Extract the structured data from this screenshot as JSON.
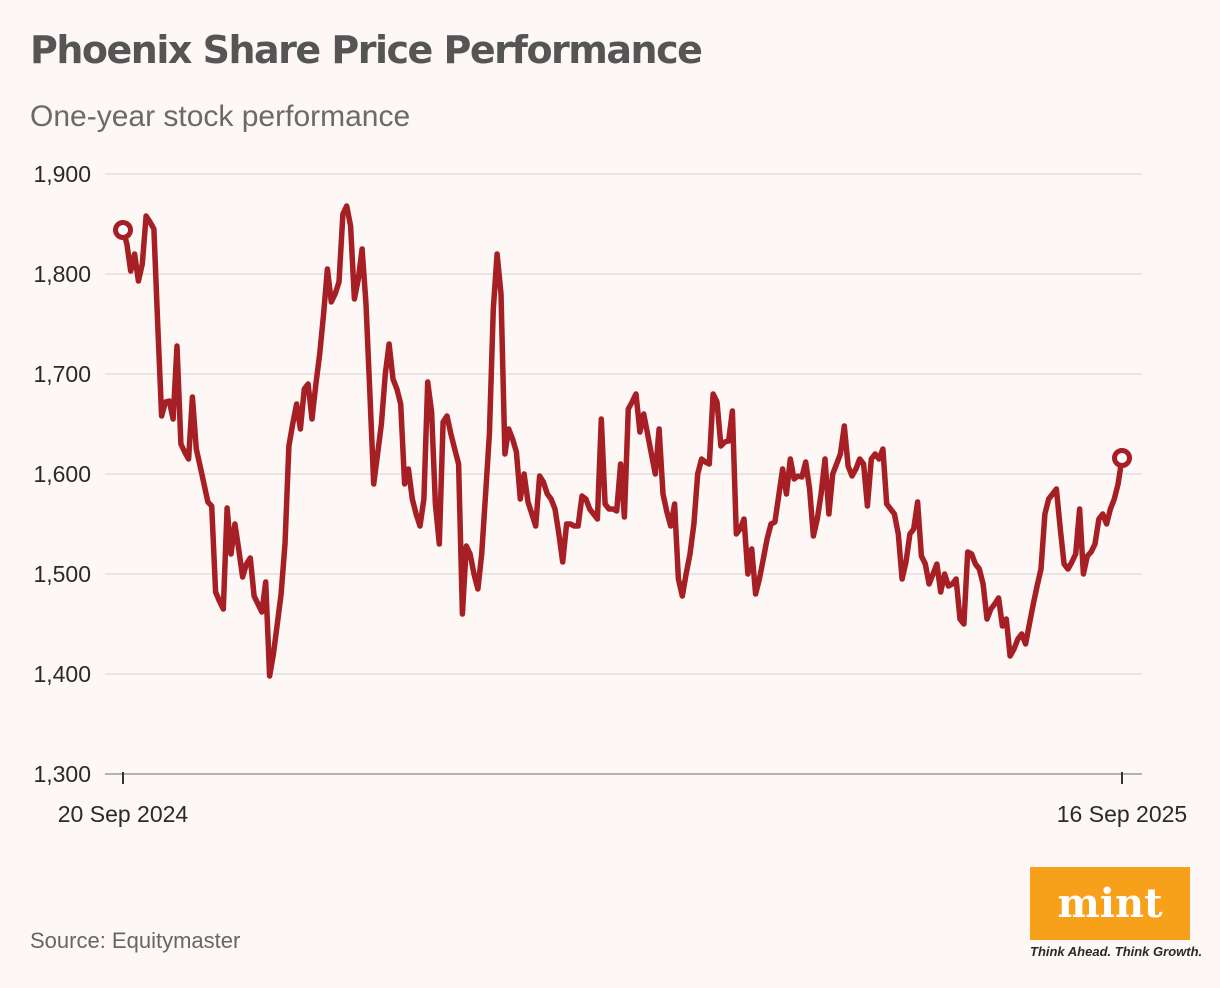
{
  "title": "Phoenix Share Price Performance",
  "subtitle": "One-year stock performance",
  "source": "Source: Equitymaster",
  "brand": {
    "name": "mint",
    "tagline": "Think Ahead. Think Growth."
  },
  "colors": {
    "line": "#a51f24",
    "grid": "#dcdcdc",
    "axis_text": "#2a2a2a",
    "logo_bg": "#f7a11a",
    "background": "#fdf8f5"
  },
  "chart_data": {
    "type": "line",
    "title": "Phoenix Share Price Performance",
    "subtitle": "One-year stock performance",
    "xlabel": "",
    "ylabel": "",
    "ylim": [
      1300,
      1900
    ],
    "yticks": [
      1300,
      1400,
      1500,
      1600,
      1700,
      1800,
      1900
    ],
    "ytick_labels": [
      "1,300",
      "1,400",
      "1,500",
      "1,600",
      "1,700",
      "1,800",
      "1,900"
    ],
    "x_start_label": "20 Sep 2024",
    "x_end_label": "16 Sep 2025",
    "grid": true,
    "legend": "none",
    "markers": [
      "first",
      "last"
    ],
    "series": [
      {
        "values": [
          1844,
          1830,
          1803,
          1820,
          1793,
          1810,
          1858,
          1852,
          1845,
          1750,
          1658,
          1672,
          1673,
          1655,
          1728,
          1630,
          1622,
          1615,
          1677,
          1625,
          1608,
          1590,
          1572,
          1568,
          1482,
          1473,
          1465,
          1566,
          1520,
          1550,
          1525,
          1497,
          1510,
          1516,
          1478,
          1470,
          1462,
          1492,
          1398,
          1420,
          1450,
          1480,
          1530,
          1628,
          1650,
          1670,
          1645,
          1685,
          1690,
          1655,
          1690,
          1720,
          1760,
          1805,
          1772,
          1780,
          1792,
          1860,
          1868,
          1848,
          1775,
          1795,
          1825,
          1770,
          1680,
          1590,
          1620,
          1650,
          1700,
          1730,
          1695,
          1685,
          1670,
          1590,
          1605,
          1575,
          1560,
          1548,
          1575,
          1692,
          1662,
          1570,
          1530,
          1652,
          1658,
          1640,
          1625,
          1610,
          1460,
          1528,
          1520,
          1500,
          1485,
          1520,
          1580,
          1640,
          1765,
          1820,
          1780,
          1620,
          1645,
          1635,
          1622,
          1575,
          1600,
          1572,
          1560,
          1548,
          1598,
          1592,
          1580,
          1575,
          1565,
          1540,
          1512,
          1550,
          1550,
          1548,
          1548,
          1578,
          1575,
          1565,
          1560,
          1555,
          1655,
          1570,
          1565,
          1565,
          1563,
          1610,
          1557,
          1665,
          1672,
          1680,
          1642,
          1660,
          1640,
          1620,
          1600,
          1645,
          1580,
          1562,
          1548,
          1570,
          1495,
          1478,
          1500,
          1520,
          1550,
          1600,
          1615,
          1612,
          1610,
          1680,
          1672,
          1628,
          1632,
          1633,
          1663,
          1540,
          1545,
          1555,
          1500,
          1525,
          1480,
          1495,
          1515,
          1535,
          1550,
          1552,
          1578,
          1605,
          1580,
          1615,
          1595,
          1598,
          1597,
          1612,
          1585,
          1538,
          1555,
          1580,
          1615,
          1560,
          1600,
          1610,
          1620,
          1648,
          1608,
          1598,
          1605,
          1615,
          1610,
          1568,
          1615,
          1620,
          1615,
          1625,
          1570,
          1565,
          1560,
          1540,
          1495,
          1512,
          1540,
          1545,
          1572,
          1518,
          1510,
          1490,
          1500,
          1510,
          1482,
          1500,
          1488,
          1490,
          1495,
          1455,
          1450,
          1522,
          1520,
          1510,
          1505,
          1490,
          1455,
          1465,
          1470,
          1476,
          1448,
          1455,
          1418,
          1425,
          1435,
          1440,
          1430,
          1450,
          1470,
          1488,
          1505,
          1560,
          1575,
          1580,
          1585,
          1545,
          1510,
          1505,
          1512,
          1520,
          1565,
          1500,
          1518,
          1522,
          1530,
          1555,
          1560,
          1550,
          1565,
          1575,
          1590,
          1616
        ]
      }
    ]
  }
}
